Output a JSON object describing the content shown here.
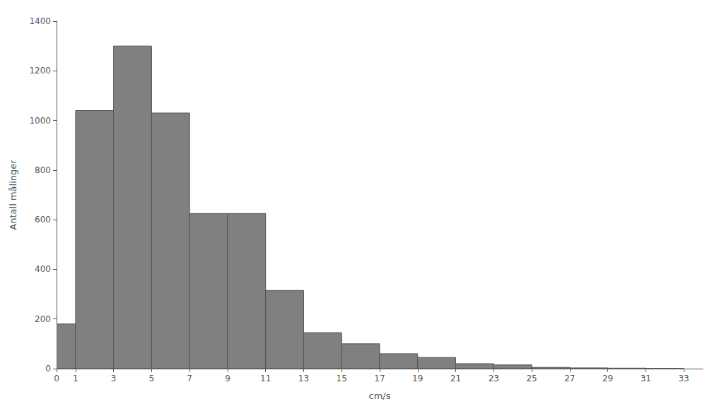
{
  "chart_data": {
    "type": "histogram",
    "xlabel": "cm/s",
    "ylabel": "Antall målinger",
    "bins": [
      0,
      1,
      3,
      5,
      7,
      9,
      11,
      13,
      15,
      17,
      19,
      21,
      23,
      25,
      27,
      29,
      31,
      33
    ],
    "values": [
      180,
      1040,
      1300,
      1030,
      625,
      625,
      315,
      145,
      100,
      60,
      45,
      20,
      15,
      5,
      3,
      2,
      1
    ],
    "color": "#808080",
    "xlim": [
      0,
      34
    ],
    "ylim": [
      0,
      1400
    ],
    "xticks": [
      0,
      1,
      3,
      5,
      7,
      9,
      11,
      13,
      15,
      17,
      19,
      21,
      23,
      25,
      27,
      29,
      31,
      33
    ],
    "yticks": [
      0,
      200,
      400,
      600,
      800,
      1000,
      1200,
      1400
    ],
    "grid": false
  }
}
